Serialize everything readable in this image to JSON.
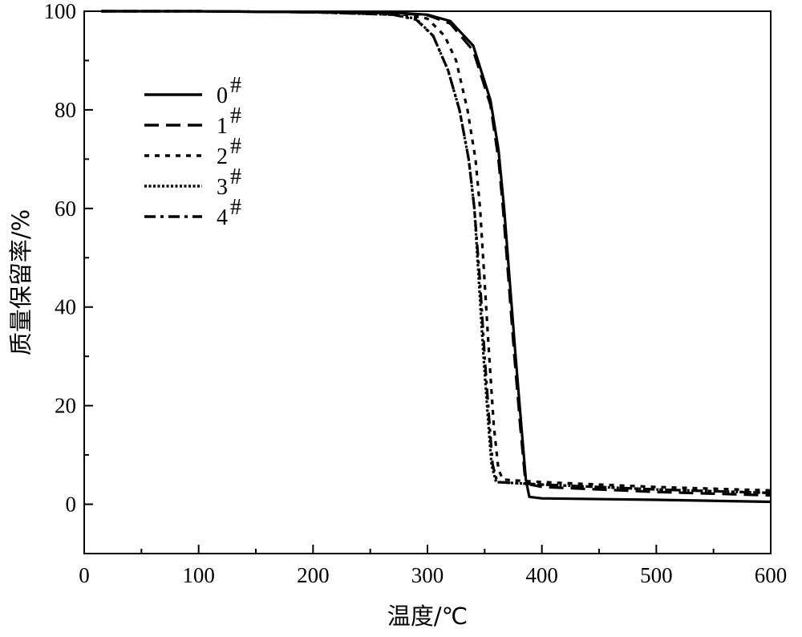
{
  "chart_data": {
    "type": "line",
    "title": "",
    "xlabel": "温度/℃",
    "ylabel": "质量保留率/%",
    "xlim": [
      0,
      600
    ],
    "ylim": [
      -10,
      100
    ],
    "x_ticks": [
      "0",
      "100",
      "200",
      "300",
      "400",
      "500",
      "600"
    ],
    "y_ticks": [
      "0",
      "20",
      "40",
      "60",
      "80",
      "100"
    ],
    "grid": false,
    "legend_position": "upper-left",
    "legend_superscript": "#",
    "series": [
      {
        "name": "0",
        "dash": "solid",
        "points": [
          [
            15,
            100
          ],
          [
            100,
            100
          ],
          [
            200,
            99.8
          ],
          [
            280,
            99.6
          ],
          [
            300,
            99.3
          ],
          [
            320,
            98
          ],
          [
            340,
            93
          ],
          [
            355,
            82
          ],
          [
            362,
            72
          ],
          [
            367,
            60
          ],
          [
            372,
            45
          ],
          [
            377,
            30
          ],
          [
            382,
            16
          ],
          [
            386,
            5
          ],
          [
            389,
            1.5
          ],
          [
            400,
            1.2
          ],
          [
            500,
            0.9
          ],
          [
            600,
            0.5
          ]
        ]
      },
      {
        "name": "1",
        "dash": "dashed",
        "points": [
          [
            15,
            100
          ],
          [
            100,
            100
          ],
          [
            200,
            99.8
          ],
          [
            280,
            99.5
          ],
          [
            300,
            99.2
          ],
          [
            320,
            97.5
          ],
          [
            340,
            92
          ],
          [
            355,
            81
          ],
          [
            362,
            70
          ],
          [
            366,
            60
          ],
          [
            371,
            45
          ],
          [
            376,
            30
          ],
          [
            381,
            16
          ],
          [
            385,
            6
          ],
          [
            390,
            4
          ],
          [
            400,
            3.5
          ],
          [
            500,
            2.5
          ],
          [
            600,
            1.8
          ]
        ]
      },
      {
        "name": "2",
        "dash": "dotted",
        "points": [
          [
            15,
            100
          ],
          [
            100,
            100
          ],
          [
            200,
            99.8
          ],
          [
            280,
            99.3
          ],
          [
            300,
            98.5
          ],
          [
            315,
            95
          ],
          [
            325,
            90
          ],
          [
            335,
            80
          ],
          [
            342,
            70
          ],
          [
            346,
            60
          ],
          [
            350,
            45
          ],
          [
            354,
            30
          ],
          [
            358,
            16
          ],
          [
            362,
            7
          ],
          [
            366,
            5
          ],
          [
            400,
            4.5
          ],
          [
            500,
            3.5
          ],
          [
            600,
            2.8
          ]
        ]
      },
      {
        "name": "3",
        "dash": "densely-dotted",
        "points": [
          [
            15,
            100
          ],
          [
            100,
            100
          ],
          [
            200,
            99.8
          ],
          [
            270,
            99.3
          ],
          [
            290,
            98.5
          ],
          [
            305,
            95
          ],
          [
            318,
            88
          ],
          [
            328,
            80
          ],
          [
            336,
            70
          ],
          [
            341,
            60
          ],
          [
            345,
            45
          ],
          [
            349,
            30
          ],
          [
            353,
            17
          ],
          [
            356,
            8
          ],
          [
            360,
            4.5
          ],
          [
            400,
            4
          ],
          [
            500,
            3
          ],
          [
            600,
            2.3
          ]
        ]
      },
      {
        "name": "4",
        "dash": "dash-dot",
        "points": [
          [
            15,
            100
          ],
          [
            100,
            100
          ],
          [
            200,
            99.8
          ],
          [
            270,
            99.3
          ],
          [
            290,
            98.3
          ],
          [
            305,
            95
          ],
          [
            318,
            88
          ],
          [
            328,
            80
          ],
          [
            336,
            70
          ],
          [
            341,
            60
          ],
          [
            346,
            45
          ],
          [
            350,
            30
          ],
          [
            354,
            17
          ],
          [
            357,
            8
          ],
          [
            361,
            4.5
          ],
          [
            400,
            4
          ],
          [
            500,
            3
          ],
          [
            600,
            2.3
          ]
        ]
      }
    ]
  }
}
